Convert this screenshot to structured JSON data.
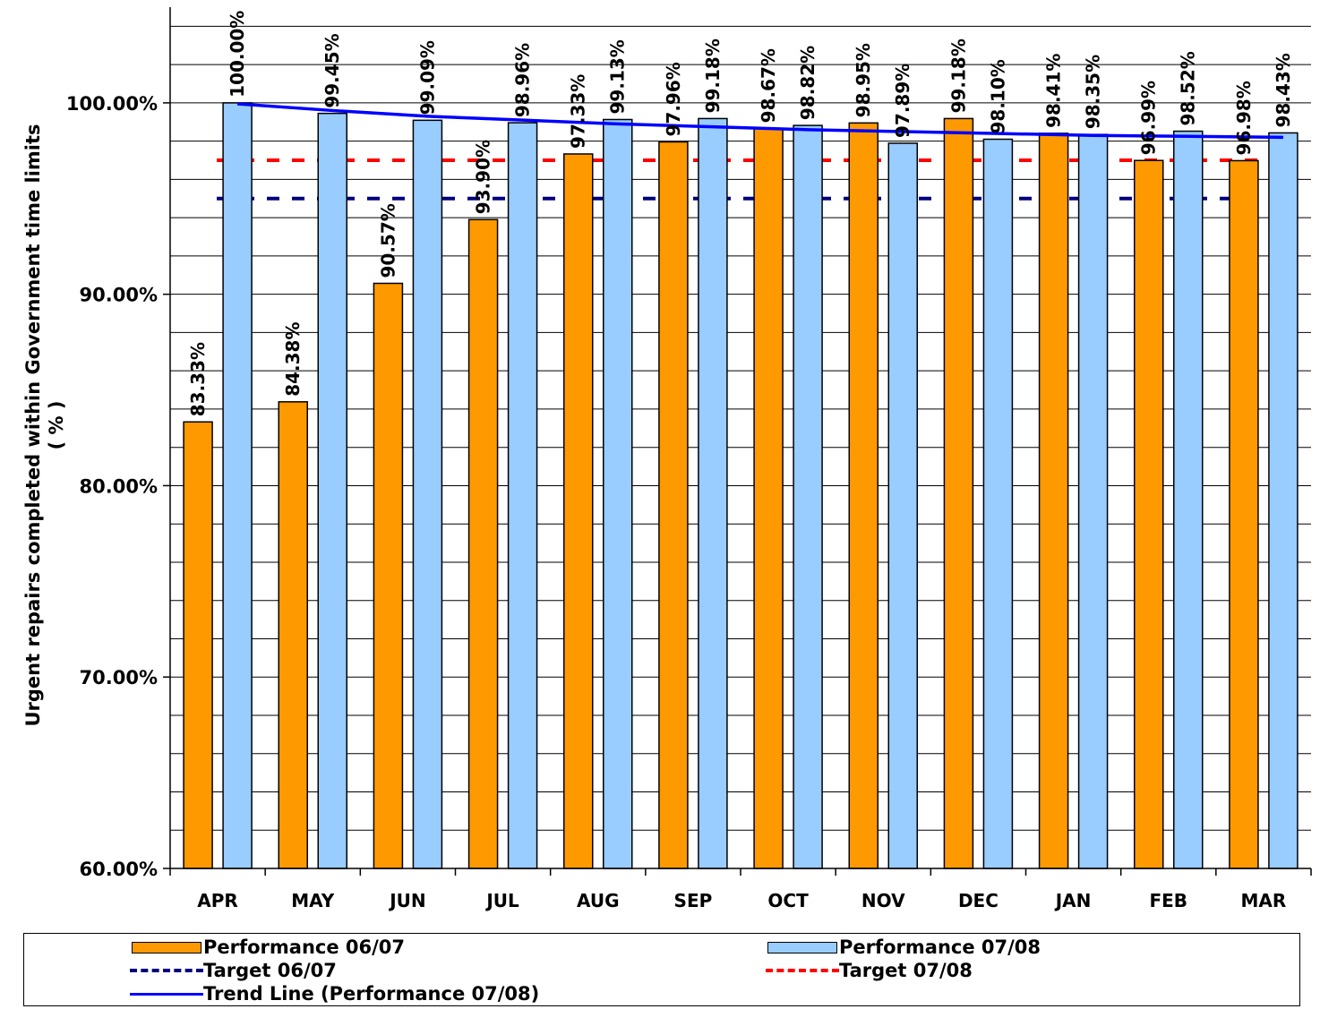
{
  "chart_data": {
    "type": "bar",
    "ylabel": "Urgent repairs completed within Government time limits",
    "ylabel_line2": "( % )",
    "ylim": [
      60,
      105
    ],
    "y_ticks": [
      60,
      70,
      80,
      90,
      100
    ],
    "y_tick_labels": [
      "60.00%",
      "70.00%",
      "80.00%",
      "90.00%",
      "100.00%"
    ],
    "minor_grid_step": 2,
    "grid": true,
    "legend_position": "bottom",
    "categories": [
      "APR",
      "MAY",
      "JUN",
      "JUL",
      "AUG",
      "SEP",
      "OCT",
      "NOV",
      "DEC",
      "JAN",
      "FEB",
      "MAR"
    ],
    "series": [
      {
        "name": "Performance 06/07",
        "kind": "bar",
        "color": "#ff9900",
        "values": [
          83.33,
          84.38,
          90.57,
          93.9,
          97.33,
          97.96,
          98.67,
          98.95,
          99.18,
          98.41,
          96.99,
          96.98
        ],
        "labels": [
          "83.33%",
          "84.38%",
          "90.57%",
          "93.90%",
          "97.33%",
          "97.96%",
          "98.67%",
          "98.95%",
          "99.18%",
          "98.41%",
          "96.99%",
          "96.98%"
        ]
      },
      {
        "name": "Performance 07/08",
        "kind": "bar",
        "color": "#99ccff",
        "values": [
          100.0,
          99.45,
          99.09,
          98.96,
          99.13,
          99.18,
          98.82,
          97.89,
          98.1,
          98.35,
          98.52,
          98.43
        ],
        "labels": [
          "100.00%",
          "99.45%",
          "99.09%",
          "98.96%",
          "99.13%",
          "99.18%",
          "98.82%",
          "97.89%",
          "98.10%",
          "98.35%",
          "98.52%",
          "98.43%"
        ]
      }
    ],
    "targets": [
      {
        "name": "Target 06/07",
        "value": 95,
        "color": "#000080"
      },
      {
        "name": "Target 07/08",
        "value": 97,
        "color": "#ff0000"
      }
    ],
    "trend": {
      "name": "Trend Line (Performance 07/08)",
      "color": "#0000ff",
      "values": [
        99.95,
        99.6,
        99.3,
        99.1,
        98.9,
        98.75,
        98.6,
        98.5,
        98.4,
        98.3,
        98.25,
        98.2
      ]
    }
  }
}
